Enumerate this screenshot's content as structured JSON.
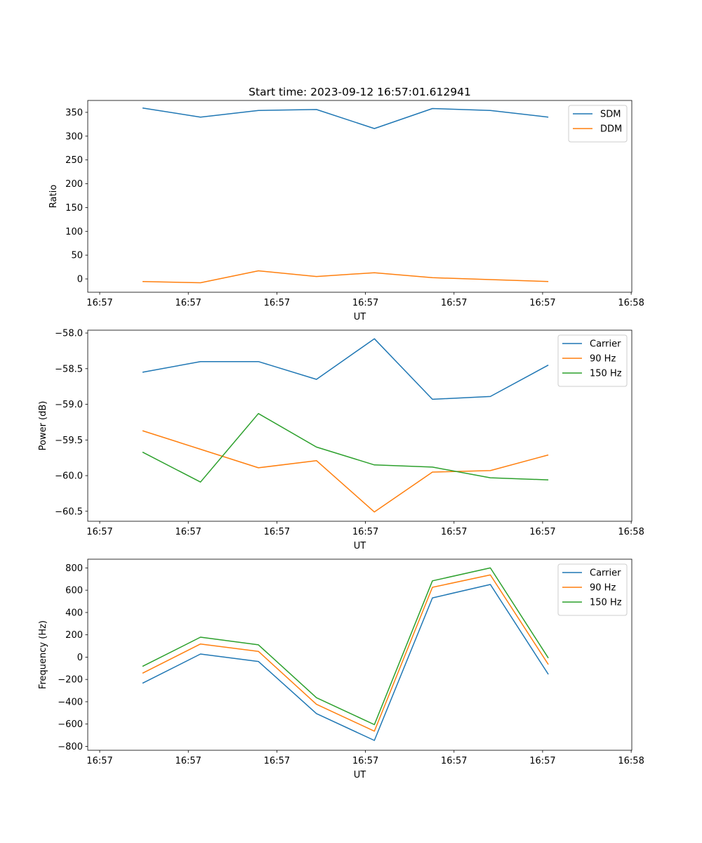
{
  "figure": {
    "title": "Start time: 2023-09-12 16:57:01.612941"
  },
  "chart_data": [
    {
      "type": "line",
      "title": "Start time: 2023-09-12 16:57:01.612941",
      "xlabel": "UT",
      "ylabel": "Ratio",
      "x_unit": "seconds after 16:57:00",
      "x": [
        4.83,
        11.38,
        17.92,
        24.47,
        31.01,
        37.56,
        44.1,
        50.65
      ],
      "xlim": [
        -1.35,
        60.07
      ],
      "xticks": [
        0,
        10,
        20,
        30,
        40,
        50,
        60
      ],
      "xtick_labels": [
        "16:57",
        "16:57",
        "16:57",
        "16:57",
        "16:57",
        "16:57",
        "16:58"
      ],
      "ylim": [
        -28,
        375
      ],
      "yticks": [
        0,
        50,
        100,
        150,
        200,
        250,
        300,
        350
      ],
      "ytick_labels": [
        "0",
        "50",
        "100",
        "150",
        "200",
        "250",
        "300",
        "350"
      ],
      "grid": false,
      "legend_position": "top-right",
      "series": [
        {
          "name": "SDM",
          "color": "#1f77b4",
          "values": [
            359,
            340,
            354,
            356,
            316,
            358,
            354,
            340
          ]
        },
        {
          "name": "DDM",
          "color": "#ff7f0e",
          "values": [
            -5.5,
            -8,
            17,
            5,
            13,
            2.5,
            -1.5,
            -5.5
          ]
        }
      ]
    },
    {
      "type": "line",
      "title": "",
      "xlabel": "UT",
      "ylabel": "Power (dB)",
      "x_unit": "seconds after 16:57:00",
      "x": [
        4.83,
        11.38,
        17.92,
        24.47,
        31.01,
        37.56,
        44.1,
        50.65
      ],
      "xlim": [
        -1.35,
        60.07
      ],
      "xticks": [
        0,
        10,
        20,
        30,
        40,
        50,
        60
      ],
      "xtick_labels": [
        "16:57",
        "16:57",
        "16:57",
        "16:57",
        "16:57",
        "16:57",
        "16:58"
      ],
      "ylim": [
        -60.64,
        -57.96
      ],
      "yticks": [
        -60.5,
        -60.0,
        -59.5,
        -59.0,
        -58.5,
        -58.0
      ],
      "ytick_labels": [
        "−60.5",
        "−60.0",
        "−59.5",
        "−59.0",
        "−58.5",
        "−58.0"
      ],
      "grid": false,
      "legend_position": "top-right",
      "series": [
        {
          "name": "Carrier",
          "color": "#1f77b4",
          "values": [
            -58.55,
            -58.4,
            -58.4,
            -58.65,
            -58.08,
            -58.93,
            -58.89,
            -58.45
          ]
        },
        {
          "name": "90 Hz",
          "color": "#ff7f0e",
          "values": [
            -59.37,
            -59.63,
            -59.89,
            -59.79,
            -60.51,
            -59.95,
            -59.93,
            -59.71
          ]
        },
        {
          "name": "150 Hz",
          "color": "#2ca02c",
          "values": [
            -59.67,
            -60.09,
            -59.13,
            -59.6,
            -59.85,
            -59.88,
            -60.03,
            -60.06
          ]
        }
      ]
    },
    {
      "type": "line",
      "title": "",
      "xlabel": "UT",
      "ylabel": "Frequency (Hz)",
      "x_unit": "seconds after 16:57:00",
      "x": [
        4.83,
        11.38,
        17.92,
        24.47,
        31.01,
        37.56,
        44.1,
        50.65
      ],
      "xlim": [
        -1.35,
        60.07
      ],
      "xticks": [
        0,
        10,
        20,
        30,
        40,
        50,
        60
      ],
      "xtick_labels": [
        "16:57",
        "16:57",
        "16:57",
        "16:57",
        "16:57",
        "16:57",
        "16:58"
      ],
      "ylim": [
        -835,
        878
      ],
      "yticks": [
        -800,
        -600,
        -400,
        -200,
        0,
        200,
        400,
        600,
        800
      ],
      "ytick_labels": [
        "−800",
        "−600",
        "−400",
        "−200",
        "0",
        "200",
        "400",
        "600",
        "800"
      ],
      "grid": false,
      "legend_position": "top-right",
      "series": [
        {
          "name": "Carrier",
          "color": "#1f77b4",
          "values": [
            -234,
            28,
            -39,
            -506,
            -747,
            531,
            651,
            -154
          ]
        },
        {
          "name": "90 Hz",
          "color": "#ff7f0e",
          "values": [
            -144,
            118,
            52,
            -423,
            -664,
            626,
            737,
            -66
          ]
        },
        {
          "name": "150 Hz",
          "color": "#2ca02c",
          "values": [
            -83,
            179,
            110,
            -364,
            -605,
            684,
            800,
            -8
          ]
        }
      ]
    }
  ]
}
